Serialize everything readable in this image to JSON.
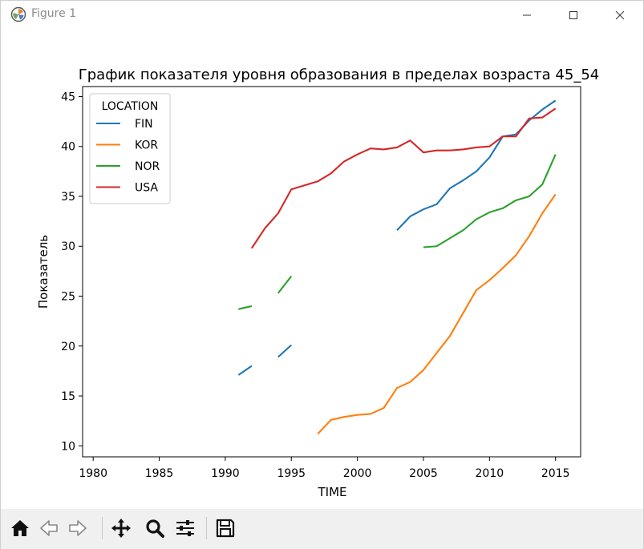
{
  "window": {
    "title": "Figure 1"
  },
  "toolbar": {
    "buttons": [
      {
        "name": "home-button",
        "icon": "home-icon"
      },
      {
        "name": "back-button",
        "icon": "arrow-left-icon"
      },
      {
        "name": "forward-button",
        "icon": "arrow-right-icon"
      },
      {
        "name": "pan-button",
        "icon": "move-icon"
      },
      {
        "name": "zoom-button",
        "icon": "magnifier-icon"
      },
      {
        "name": "configure-subplots-button",
        "icon": "sliders-icon"
      },
      {
        "name": "save-button",
        "icon": "floppy-disk-icon"
      }
    ]
  },
  "chart_data": {
    "type": "line",
    "title": "График показателя уровня образования в пределах возраста 45_54",
    "xlabel": "TIME",
    "ylabel": "Показатель",
    "xlim": [
      1979.2,
      2016.9
    ],
    "ylim": [
      8.9,
      46.0
    ],
    "xticks": [
      1980,
      1985,
      1990,
      1995,
      2000,
      2005,
      2010,
      2015
    ],
    "yticks": [
      10,
      15,
      20,
      25,
      30,
      35,
      40,
      45
    ],
    "grid": false,
    "legend": {
      "title": "LOCATION",
      "position": "upper-left"
    },
    "series": [
      {
        "name": "FIN",
        "color": "#1f77b4",
        "points": [
          [
            1991,
            17.1
          ],
          [
            1992,
            18.0
          ],
          [
            1993,
            null
          ],
          [
            1994,
            18.9
          ],
          [
            1995,
            20.1
          ],
          [
            1996,
            null
          ],
          [
            2003,
            31.6
          ],
          [
            2004,
            33.0
          ],
          [
            2005,
            33.7
          ],
          [
            2006,
            34.2
          ],
          [
            2007,
            35.8
          ],
          [
            2008,
            36.6
          ],
          [
            2009,
            37.5
          ],
          [
            2010,
            38.9
          ],
          [
            2011,
            41.0
          ],
          [
            2012,
            41.2
          ],
          [
            2013,
            42.6
          ],
          [
            2014,
            43.7
          ],
          [
            2015,
            44.6
          ]
        ]
      },
      {
        "name": "KOR",
        "color": "#ff7f0e",
        "points": [
          [
            1997,
            11.2
          ],
          [
            1998,
            12.6
          ],
          [
            1999,
            12.9
          ],
          [
            2000,
            13.1
          ],
          [
            2001,
            13.2
          ],
          [
            2002,
            13.8
          ],
          [
            2003,
            15.8
          ],
          [
            2004,
            16.4
          ],
          [
            2005,
            17.6
          ],
          [
            2006,
            19.3
          ],
          [
            2007,
            21.0
          ],
          [
            2008,
            23.3
          ],
          [
            2009,
            25.6
          ],
          [
            2010,
            26.6
          ],
          [
            2011,
            27.8
          ],
          [
            2012,
            29.1
          ],
          [
            2013,
            31.0
          ],
          [
            2014,
            33.3
          ],
          [
            2015,
            35.2
          ]
        ]
      },
      {
        "name": "NOR",
        "color": "#2ca02c",
        "points": [
          [
            1991,
            23.7
          ],
          [
            1992,
            24.0
          ],
          [
            1993,
            null
          ],
          [
            1994,
            25.3
          ],
          [
            1995,
            27.0
          ],
          [
            1996,
            null
          ],
          [
            2005,
            29.9
          ],
          [
            2006,
            30.0
          ],
          [
            2007,
            30.8
          ],
          [
            2008,
            31.6
          ],
          [
            2009,
            32.7
          ],
          [
            2010,
            33.4
          ],
          [
            2011,
            33.8
          ],
          [
            2012,
            34.6
          ],
          [
            2013,
            35.0
          ],
          [
            2014,
            36.2
          ],
          [
            2015,
            39.2
          ]
        ]
      },
      {
        "name": "USA",
        "color": "#d62728",
        "points": [
          [
            1992,
            29.8
          ],
          [
            1993,
            31.8
          ],
          [
            1994,
            33.3
          ],
          [
            1995,
            35.7
          ],
          [
            1996,
            36.1
          ],
          [
            1997,
            36.5
          ],
          [
            1998,
            37.3
          ],
          [
            1999,
            38.5
          ],
          [
            2000,
            39.2
          ],
          [
            2001,
            39.8
          ],
          [
            2002,
            39.7
          ],
          [
            2003,
            39.9
          ],
          [
            2004,
            40.6
          ],
          [
            2005,
            39.4
          ],
          [
            2006,
            39.6
          ],
          [
            2007,
            39.6
          ],
          [
            2008,
            39.7
          ],
          [
            2009,
            39.9
          ],
          [
            2010,
            40.0
          ],
          [
            2011,
            41.0
          ],
          [
            2012,
            41.0
          ],
          [
            2013,
            42.8
          ],
          [
            2014,
            42.9
          ],
          [
            2015,
            43.8
          ]
        ]
      }
    ]
  }
}
